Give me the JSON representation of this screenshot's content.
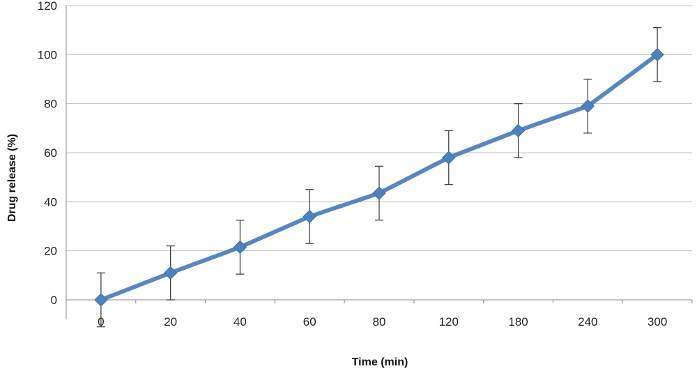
{
  "chart_data": {
    "type": "line",
    "title": "",
    "xlabel": "Time (min)",
    "ylabel": "Drug release (%)",
    "categories": [
      "0",
      "20",
      "40",
      "60",
      "80",
      "120",
      "180",
      "240",
      "300"
    ],
    "series": [
      {
        "values": [
          0,
          11,
          21.5,
          34,
          43.5,
          58,
          69,
          79,
          100
        ],
        "error": [
          11,
          11,
          11,
          11,
          11,
          11,
          11,
          11,
          11
        ],
        "color": "#4f81bd",
        "marker": "diamond"
      }
    ],
    "ylim": [
      0,
      120
    ],
    "yticks": [
      "0",
      "20",
      "40",
      "60",
      "80",
      "100",
      "120"
    ],
    "grid": true,
    "legend": "none"
  }
}
